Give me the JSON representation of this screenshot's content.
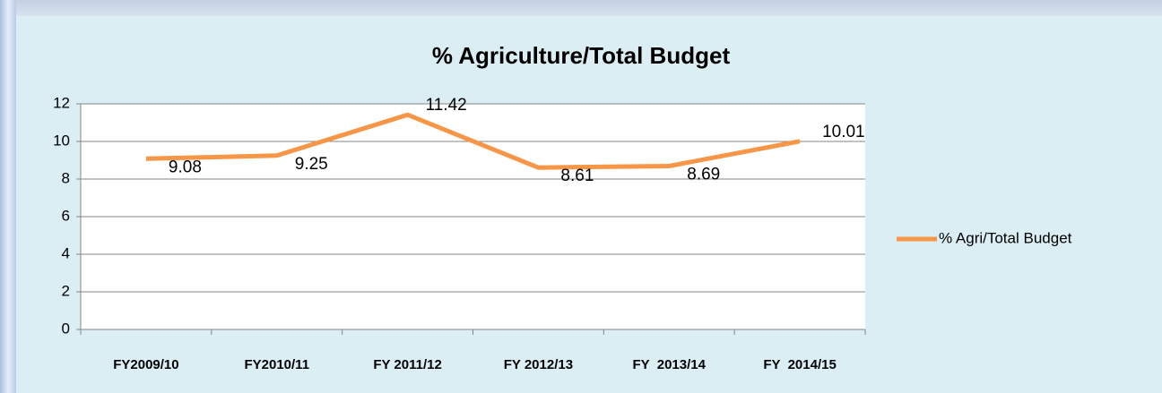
{
  "chart_data": {
    "type": "line",
    "title": "% Agriculture/Total Budget",
    "categories": [
      "FY2009/10",
      "FY2010/11",
      "FY 2011/12",
      "FY 2012/13",
      "FY  2013/14",
      "FY  2014/15"
    ],
    "series": [
      {
        "name": "% Agri/Total Budget",
        "color": "#f79646",
        "values": [
          9.08,
          9.25,
          11.42,
          8.61,
          8.69,
          10.01
        ]
      }
    ],
    "ylim": [
      0,
      12
    ],
    "yticks": [
      0,
      2,
      4,
      6,
      8,
      10,
      12
    ],
    "grid": true,
    "legend": "right"
  }
}
